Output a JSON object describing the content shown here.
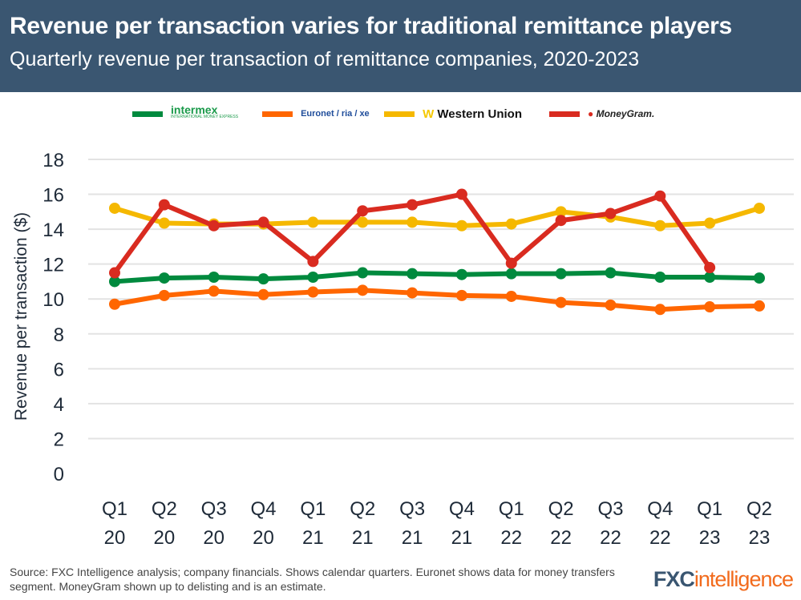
{
  "header": {
    "title": "Revenue per transaction varies for traditional remittance players",
    "subtitle": "Quarterly revenue per transaction of remittance companies, 2020-2023"
  },
  "legend": [
    {
      "label": "intermex",
      "sub": "INTERNATIONAL MONEY EXPRESS",
      "color": "#008a3e"
    },
    {
      "label": "Euronet / ria / xe",
      "color": "#ff6600"
    },
    {
      "label": "Western Union",
      "color": "#f5b800"
    },
    {
      "label": "MoneyGram.",
      "color": "#d92b20"
    }
  ],
  "footer": {
    "source": "Source: FXC Intelligence analysis; company financials. Shows calendar quarters. Euronet shows data for money transfers segment. MoneyGram shown up to delisting and is an estimate.",
    "brand_a": "FXC",
    "brand_b": "intelligence"
  },
  "chart_data": {
    "type": "line",
    "title": "Revenue per transaction varies for traditional remittance players",
    "subtitle": "Quarterly revenue per transaction of remittance companies, 2020-2023",
    "ylabel": "Revenue per transaction ($)",
    "xlabel": "",
    "ylim": [
      0,
      18
    ],
    "yticks": [
      0,
      2,
      4,
      6,
      8,
      10,
      12,
      14,
      16,
      18
    ],
    "grid": true,
    "legend_position": "top",
    "categories": [
      [
        "Q1",
        "20"
      ],
      [
        "Q2",
        "20"
      ],
      [
        "Q3",
        "20"
      ],
      [
        "Q4",
        "20"
      ],
      [
        "Q1",
        "21"
      ],
      [
        "Q2",
        "21"
      ],
      [
        "Q3",
        "21"
      ],
      [
        "Q4",
        "21"
      ],
      [
        "Q1",
        "22"
      ],
      [
        "Q2",
        "22"
      ],
      [
        "Q3",
        "22"
      ],
      [
        "Q4",
        "22"
      ],
      [
        "Q1",
        "23"
      ],
      [
        "Q2",
        "23"
      ]
    ],
    "series": [
      {
        "name": "Intermex",
        "color": "#008a3e",
        "values": [
          11.0,
          11.2,
          11.25,
          11.15,
          11.25,
          11.5,
          11.45,
          11.4,
          11.45,
          11.45,
          11.5,
          11.25,
          11.25,
          11.2
        ]
      },
      {
        "name": "Euronet",
        "color": "#ff6600",
        "values": [
          9.7,
          10.2,
          10.45,
          10.25,
          10.4,
          10.5,
          10.35,
          10.2,
          10.15,
          9.8,
          9.65,
          9.4,
          9.55,
          9.6
        ]
      },
      {
        "name": "Western Union",
        "color": "#f5b800",
        "values": [
          15.2,
          14.35,
          14.3,
          14.3,
          14.4,
          14.4,
          14.4,
          14.2,
          14.3,
          15.0,
          14.7,
          14.2,
          14.35,
          15.2
        ]
      },
      {
        "name": "MoneyGram",
        "color": "#d92b20",
        "values": [
          11.5,
          15.4,
          14.2,
          14.4,
          12.15,
          15.05,
          15.4,
          16.0,
          12.05,
          14.5,
          14.9,
          15.9,
          11.8,
          null
        ]
      }
    ]
  }
}
